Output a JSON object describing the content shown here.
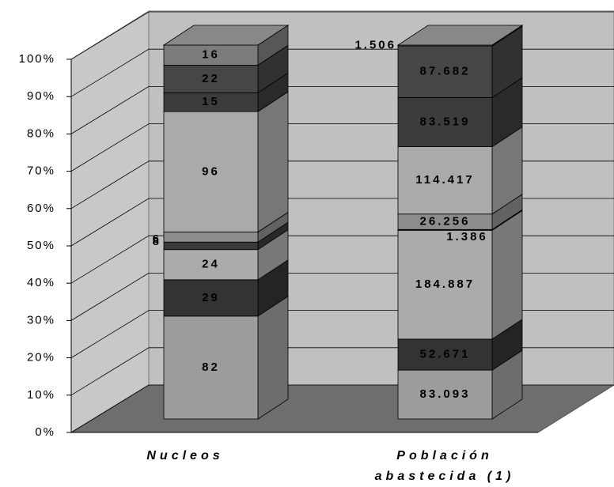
{
  "chart_data": {
    "type": "bar",
    "stacking": "percent",
    "categories": [
      "Nucleos",
      "Población abastecida (1)"
    ],
    "series": [
      {
        "color": "#9c9c9c",
        "values": [
          82,
          83093
        ],
        "value_labels": [
          "82",
          "83.093"
        ]
      },
      {
        "color": "#333333",
        "values": [
          29,
          52671
        ],
        "value_labels": [
          "29",
          "52.671"
        ]
      },
      {
        "color": "#ababab",
        "values": [
          24,
          184887
        ],
        "value_labels": [
          "24",
          "184.887"
        ]
      },
      {
        "color": "#3a3a3a",
        "values": [
          6,
          1386
        ],
        "value_labels": [
          "6",
          "1.386"
        ]
      },
      {
        "color": "#8c8c8c",
        "values": [
          8,
          26256
        ],
        "value_labels": [
          "8",
          "26.256"
        ]
      },
      {
        "color": "#aaaaaa",
        "values": [
          96,
          114417
        ],
        "value_labels": [
          "96",
          "114.417"
        ]
      },
      {
        "color": "#3c3c3c",
        "values": [
          15,
          83519
        ],
        "value_labels": [
          "15",
          "83.519"
        ]
      },
      {
        "color": "#464646",
        "values": [
          22,
          87682
        ],
        "value_labels": [
          "22",
          "87.682"
        ]
      },
      {
        "color": "#7c7c7c",
        "values": [
          16,
          1506
        ],
        "value_labels": [
          "16",
          "1.506"
        ]
      }
    ],
    "ylim": [
      0,
      100
    ],
    "yticks": [
      {
        "value": 0,
        "label": "0%"
      },
      {
        "value": 10,
        "label": "10%"
      },
      {
        "value": 20,
        "label": "20%"
      },
      {
        "value": 30,
        "label": "30%"
      },
      {
        "value": 40,
        "label": "40%"
      },
      {
        "value": 50,
        "label": "50%"
      },
      {
        "value": 60,
        "label": "60%"
      },
      {
        "value": 70,
        "label": "70%"
      },
      {
        "value": 80,
        "label": "80%"
      },
      {
        "value": 90,
        "label": "90%"
      },
      {
        "value": 100,
        "label": "100%"
      }
    ],
    "grid": true
  }
}
